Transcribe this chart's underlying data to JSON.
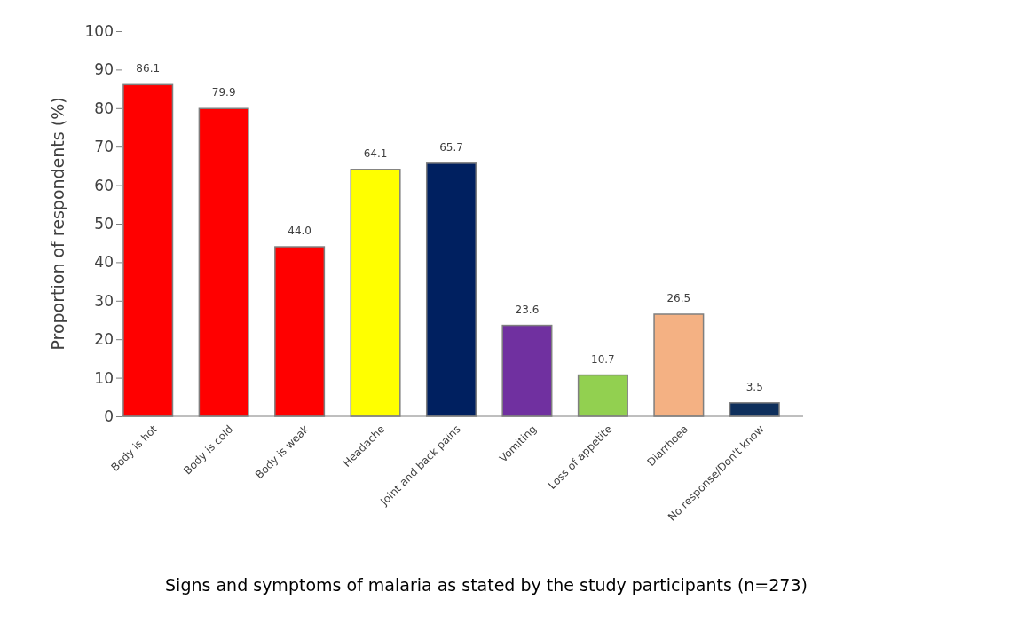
{
  "chart_data": {
    "type": "bar",
    "xlabel": "Signs and symptoms of malaria as stated by the study participants (n=273)",
    "ylabel": "Proportion of respondents (%)",
    "categories": [
      "Body is hot",
      "Body is cold",
      "Body is weak",
      "Headache",
      "Joint and back pains",
      "Vomiting",
      "Loss of appetite",
      "Diarrhoea",
      "No response/Don't know"
    ],
    "values": [
      86.1,
      79.9,
      44.0,
      64.1,
      65.7,
      23.6,
      10.7,
      26.5,
      3.5
    ],
    "colors": [
      "#ff0000",
      "#ff0000",
      "#ff0000",
      "#ffff00",
      "#002060",
      "#7030a0",
      "#92d050",
      "#f4b183",
      "#0e2f5c"
    ],
    "value_labels": [
      "86.1",
      "79.9",
      "44.0",
      "64.1",
      "65.7",
      "23.6",
      "10.7",
      "26.5",
      "3.5"
    ],
    "ylim": [
      0,
      100
    ],
    "yticks": [
      0,
      10,
      20,
      30,
      40,
      50,
      60,
      70,
      80,
      90,
      100
    ]
  }
}
